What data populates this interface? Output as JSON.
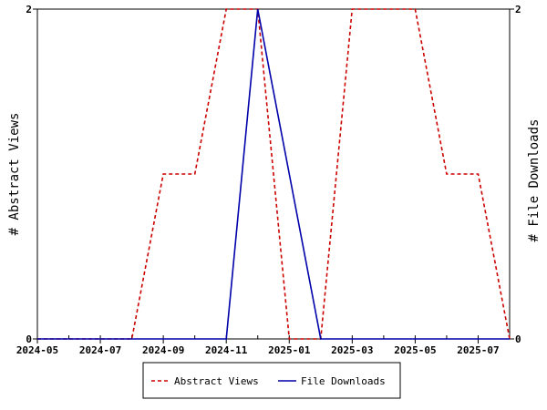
{
  "chart_data": {
    "type": "line",
    "title": "",
    "xlabel": "",
    "ylabel_left": "# Abstract Views",
    "ylabel_right": "# File Downloads",
    "x_ticks": [
      "2024-05",
      "2024-07",
      "2024-09",
      "2024-11",
      "2025-01",
      "2025-03",
      "2025-05",
      "2025-07"
    ],
    "x": [
      "2024-05",
      "2024-06",
      "2024-07",
      "2024-08",
      "2024-09",
      "2024-10",
      "2024-11",
      "2024-12",
      "2025-01",
      "2025-02",
      "2025-03",
      "2025-04",
      "2025-05",
      "2025-06",
      "2025-07",
      "2025-08"
    ],
    "xlim": [
      "2024-05",
      "2025-08"
    ],
    "ylim_left": [
      0,
      2
    ],
    "ylim_right": [
      0,
      2
    ],
    "y_ticks_left": [
      "0",
      "2"
    ],
    "y_ticks_right": [
      "0",
      "2"
    ],
    "legend_position": "bottom",
    "series": [
      {
        "name": "Abstract Views",
        "axis": "left",
        "color": "#cc0000",
        "style": "dashed",
        "values": [
          0,
          0,
          0,
          0,
          1,
          1,
          2,
          2,
          0,
          0,
          2,
          2,
          2,
          1,
          1,
          0
        ]
      },
      {
        "name": "File Downloads",
        "axis": "right",
        "color": "#0000aa",
        "style": "solid",
        "values": [
          0,
          0,
          0,
          0,
          0,
          0,
          0,
          2,
          1,
          0,
          0,
          0,
          0,
          0,
          0,
          0
        ]
      }
    ]
  }
}
